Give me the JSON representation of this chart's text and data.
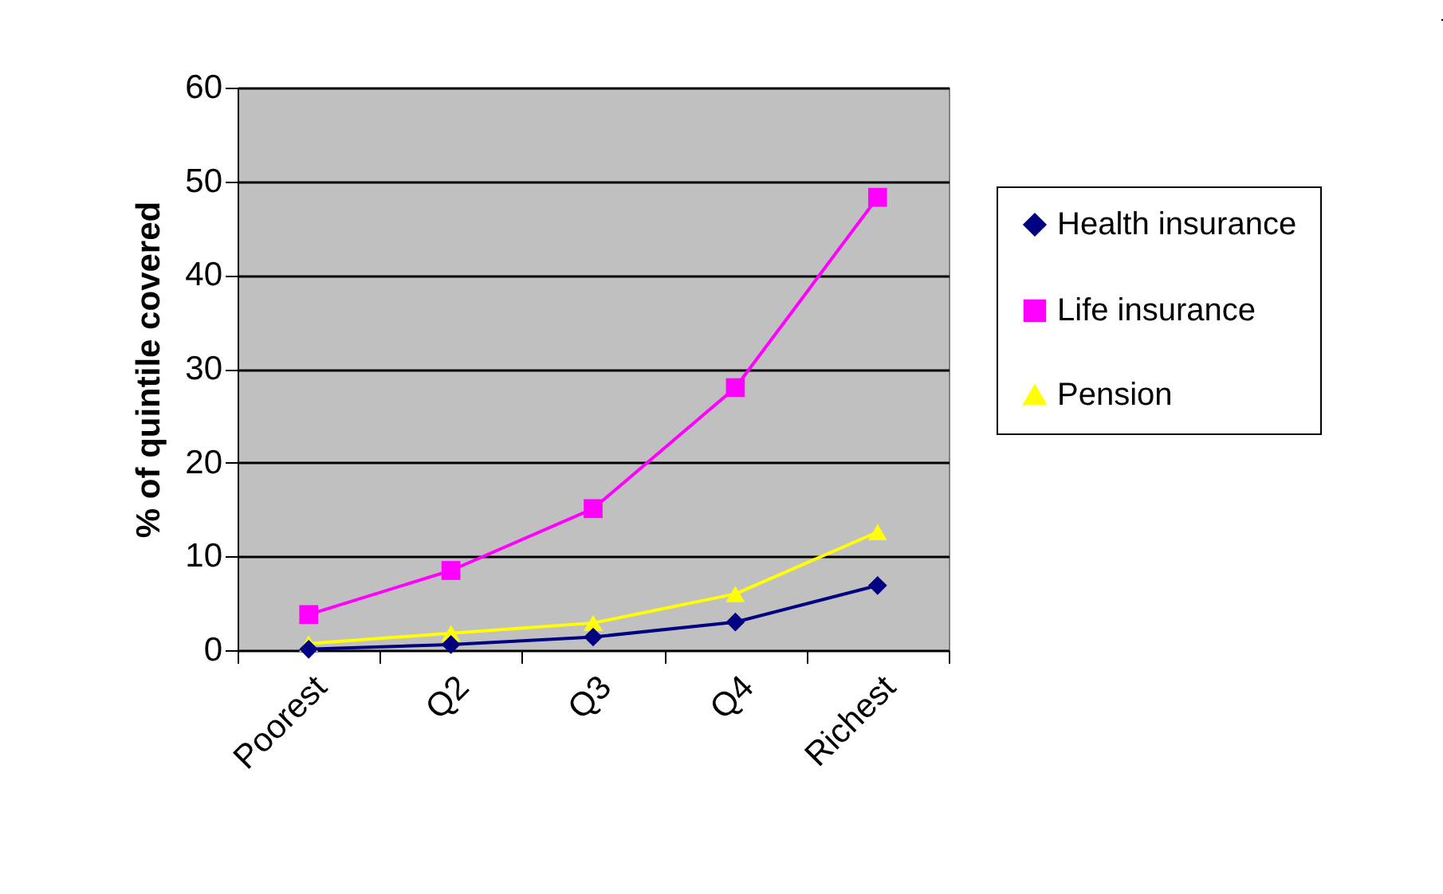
{
  "chart_data": {
    "type": "line",
    "ylabel": "% of quintile covered",
    "categories": [
      "Poorest",
      "Q2",
      "Q3",
      "Q4",
      "Richest"
    ],
    "series": [
      {
        "name": "Health insurance",
        "color": "#000080",
        "marker": "diamond",
        "values": [
          0.1,
          0.6,
          1.4,
          3.0,
          6.9
        ]
      },
      {
        "name": "Life insurance",
        "color": "#ff00ff",
        "marker": "square",
        "values": [
          3.8,
          8.5,
          15.1,
          28.0,
          48.3
        ]
      },
      {
        "name": "Pension",
        "color": "#ffff00",
        "marker": "triangle",
        "values": [
          0.7,
          1.8,
          2.9,
          6.0,
          12.6
        ]
      }
    ],
    "ylim": [
      0,
      60
    ],
    "yticks": [
      0,
      10,
      20,
      30,
      40,
      50,
      60
    ],
    "grid": "y",
    "legend": "right"
  }
}
